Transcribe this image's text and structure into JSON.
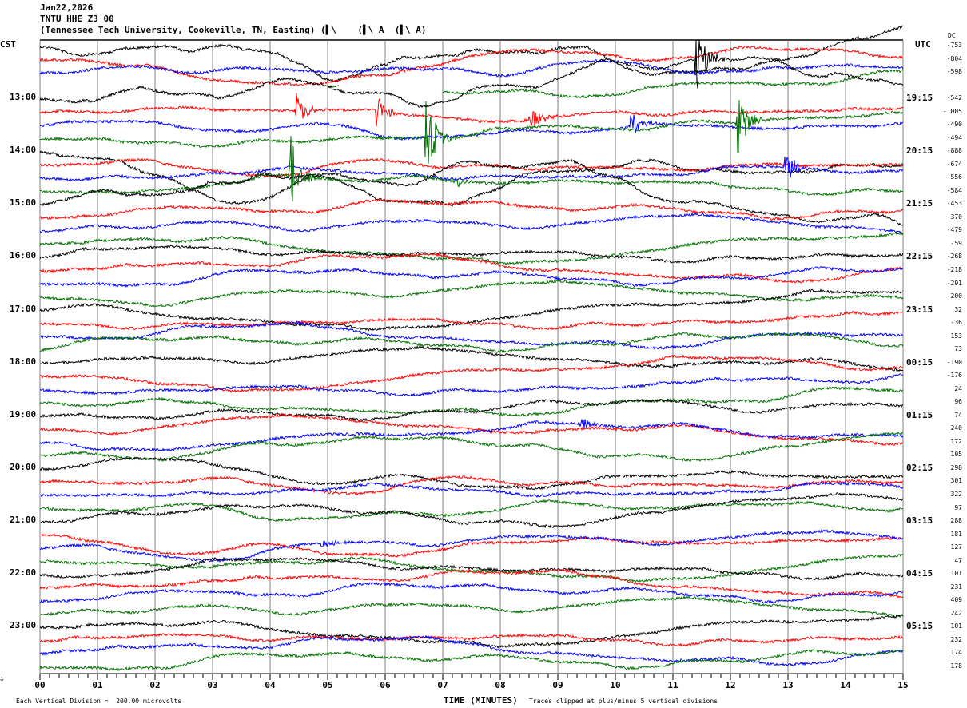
{
  "header": {
    "date": "Jan22,2026",
    "station": "TNTU HHE Z3 00",
    "location": "(Tennessee Tech University, Cookeville, TN, Easting) (▌\\    (▌\\ A  (▌\\ A)"
  },
  "left_tz": "CST",
  "right_tz": "UTC",
  "dc_label": "DC",
  "footer": {
    "scale": "Each Vertical Division =  200.00 microvolts",
    "xlabel": "TIME (MINUTES)",
    "clip": "Traces clipped at plus/minus 5 vertical divisions",
    "corner": "∴"
  },
  "colors": {
    "cycle": [
      "#000000",
      "#ff0000",
      "#0000ff",
      "#007000"
    ],
    "grid": "#808080"
  },
  "chart_data": {
    "type": "line",
    "title": "TNTU HHE Z3 00 helicorder",
    "xlabel": "TIME (MINUTES)",
    "xlim": [
      0,
      15
    ],
    "x_ticks": [
      "00",
      "01",
      "02",
      "03",
      "04",
      "05",
      "06",
      "07",
      "08",
      "09",
      "10",
      "11",
      "12",
      "13",
      "14",
      "15"
    ],
    "rows": 48,
    "row_minutes": 15,
    "cst_labels": [
      {
        "row": 4,
        "label": "13:00"
      },
      {
        "row": 8,
        "label": "14:00"
      },
      {
        "row": 12,
        "label": "15:00"
      },
      {
        "row": 16,
        "label": "16:00"
      },
      {
        "row": 20,
        "label": "17:00"
      },
      {
        "row": 24,
        "label": "18:00"
      },
      {
        "row": 28,
        "label": "19:00"
      },
      {
        "row": 32,
        "label": "20:00"
      },
      {
        "row": 36,
        "label": "21:00"
      },
      {
        "row": 40,
        "label": "22:00"
      },
      {
        "row": 44,
        "label": "23:00"
      }
    ],
    "utc_labels": [
      {
        "row": 4,
        "label": "19:15"
      },
      {
        "row": 8,
        "label": "20:15"
      },
      {
        "row": 12,
        "label": "21:15"
      },
      {
        "row": 16,
        "label": "22:15"
      },
      {
        "row": 20,
        "label": "23:15"
      },
      {
        "row": 24,
        "label": "00:15"
      },
      {
        "row": 28,
        "label": "01:15"
      },
      {
        "row": 32,
        "label": "02:15"
      },
      {
        "row": 36,
        "label": "03:15"
      },
      {
        "row": 40,
        "label": "04:15"
      },
      {
        "row": 44,
        "label": "05:15"
      }
    ],
    "dc_offsets": [
      "-753",
      "-804",
      "-598",
      "",
      "-542",
      "-1005",
      "-490",
      "-494",
      "-888",
      "-674",
      "-556",
      "-584",
      "-453",
      "-370",
      "-479",
      "-59",
      "-268",
      "-218",
      "-291",
      "-200",
      "32",
      "-36",
      "153",
      "73",
      "-190",
      "-176",
      "24",
      "96",
      "74",
      "240",
      "172",
      "105",
      "298",
      "301",
      "322",
      "97",
      "288",
      "181",
      "127",
      "47",
      "101",
      "231",
      "409",
      "242",
      "101",
      "232",
      "174",
      "178"
    ],
    "partial_rows": [
      {
        "row": 3,
        "segments": [
          [
            5.0,
            5.2
          ],
          [
            7.0,
            15
          ]
        ]
      }
    ],
    "events": [
      {
        "row": 4,
        "minute": 11.4,
        "amplitude_div": 3.0
      },
      {
        "row": 5,
        "minute": 4.45,
        "amplitude_div": 1.6
      },
      {
        "row": 5,
        "minute": 5.85,
        "amplitude_div": 1.5
      },
      {
        "row": 5,
        "minute": 8.5,
        "amplitude_div": 1.0
      },
      {
        "row": 6,
        "minute": 10.25,
        "amplitude_div": 1.2
      },
      {
        "row": 7,
        "minute": 6.7,
        "amplitude_div": 3.5
      },
      {
        "row": 7,
        "minute": 12.1,
        "amplitude_div": 3.2
      },
      {
        "row": 10,
        "minute": 12.95,
        "amplitude_div": 1.5
      },
      {
        "row": 11,
        "minute": 4.35,
        "amplitude_div": 3.5
      },
      {
        "row": 11,
        "minute": 7.25,
        "amplitude_div": 0.4
      },
      {
        "row": 38,
        "minute": 4.9,
        "amplitude_div": 0.4
      },
      {
        "row": 30,
        "minute": 9.4,
        "amplitude_div": 0.6
      }
    ]
  }
}
